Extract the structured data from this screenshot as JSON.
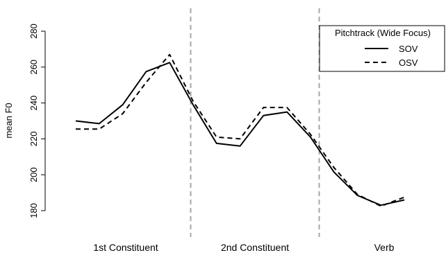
{
  "chart_data": {
    "type": "line",
    "title": "",
    "xlabel": "",
    "ylabel": "mean F0",
    "ylim": [
      180,
      280
    ],
    "yticks": [
      180,
      200,
      220,
      240,
      260,
      280
    ],
    "grid": false,
    "x_count": 15,
    "segments": [
      {
        "label": "1st Constituent",
        "range": [
          1,
          5
        ]
      },
      {
        "label": "2nd Constituent",
        "range": [
          6,
          10
        ]
      },
      {
        "label": "Verb",
        "range": [
          11,
          15
        ]
      }
    ],
    "series": [
      {
        "name": "SOV",
        "style": "solid",
        "values": [
          230,
          228.5,
          239,
          257.5,
          262.5,
          239,
          217.5,
          216,
          233,
          235,
          221,
          201.5,
          188.5,
          183,
          186
        ]
      },
      {
        "name": "OSV",
        "style": "dashed",
        "values": [
          225.5,
          225.5,
          234,
          251.5,
          267,
          241,
          221,
          220,
          237.5,
          237.5,
          222.5,
          204,
          189,
          182.5,
          187.5
        ]
      }
    ],
    "legend": {
      "title": "Pitchtrack (Wide Focus)",
      "position": "top-right"
    },
    "colors": {
      "lines": "#000000",
      "divider": "#a6a6a6"
    }
  }
}
